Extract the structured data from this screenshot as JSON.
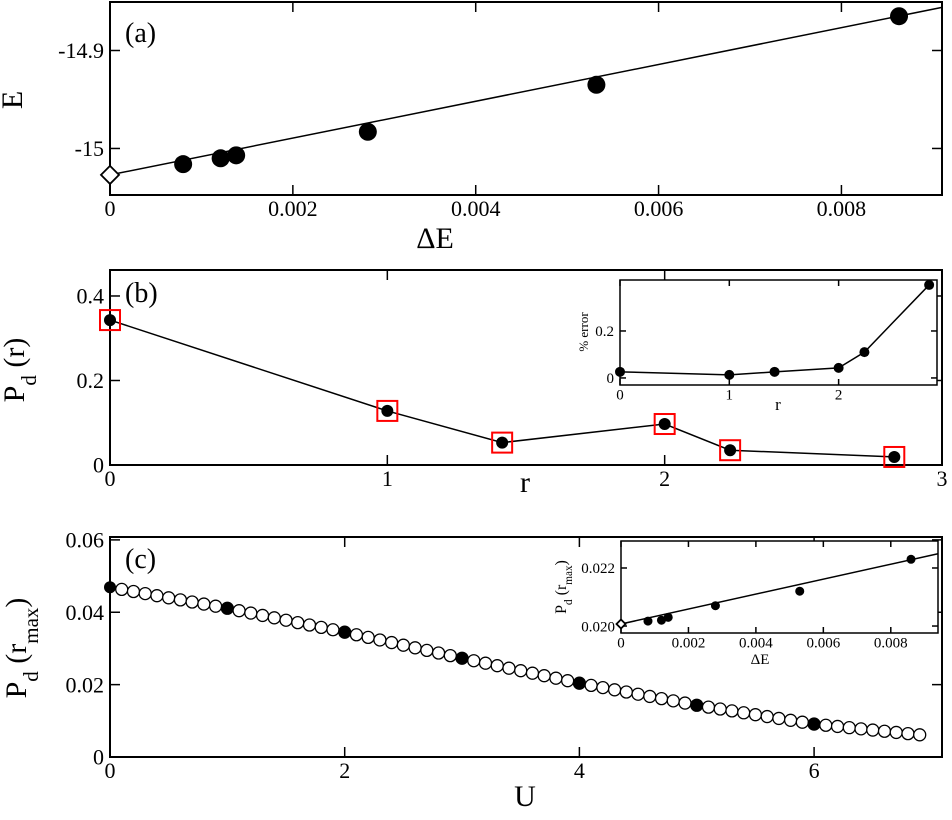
{
  "chart_data": [
    {
      "type": "scatter",
      "panel_label": "(a)",
      "xlabel": "ΔE",
      "ylabel": [
        "E"
      ],
      "xlim": [
        0,
        0.0091
      ],
      "ylim": [
        -15.0475,
        -14.8505
      ],
      "xticks": [
        0,
        0.002,
        0.004,
        0.006,
        0.008
      ],
      "yticks": [
        -15,
        -14.9
      ],
      "series": [
        {
          "x": [
            0,
            0.0091
          ],
          "values": [
            -15.027,
            -14.856
          ],
          "line": true,
          "marker": "none",
          "color": "#000000"
        },
        {
          "x": [
            0
          ],
          "values": [
            -15.027
          ],
          "line": false,
          "marker": "open-diamond",
          "color": "#000000"
        },
        {
          "x": [
            0.0008,
            0.00121,
            0.00138,
            0.00282,
            0.00532,
            0.00863
          ],
          "values": [
            -15.016,
            -15.01,
            -15.007,
            -14.983,
            -14.935,
            -14.865
          ],
          "line": false,
          "marker": "filled-circle",
          "color": "#000000"
        }
      ]
    },
    {
      "type": "line",
      "panel_label": "(b)",
      "xlabel": "r",
      "ylabel": [
        "P",
        "d",
        " (r)"
      ],
      "xlim": [
        0,
        3
      ],
      "ylim": [
        0,
        0.4615
      ],
      "xticks": [
        0,
        1,
        2,
        3
      ],
      "yticks": [
        0,
        0.2,
        0.4
      ],
      "series": [
        {
          "x": [
            0,
            1,
            1.414,
            2,
            2.236,
            2.828
          ],
          "values": [
            0.343,
            0.128,
            0.053,
            0.097,
            0.035,
            0.019
          ],
          "line": true,
          "marker": "filled-circle",
          "color": "#000000",
          "box_color": "#ff0000"
        }
      ]
    },
    {
      "type": "line",
      "xlabel": "r",
      "ylabel": [
        "% error"
      ],
      "xlim": [
        0,
        2.9
      ],
      "ylim": [
        -0.03,
        0.417
      ],
      "xticks": [
        0,
        1,
        2
      ],
      "yticks": [
        0,
        0.2
      ],
      "series": [
        {
          "x": [
            0,
            1,
            1.414,
            2,
            2.236,
            2.828
          ],
          "values": [
            0.026,
            0.013,
            0.026,
            0.043,
            0.11,
            0.396
          ],
          "line": true,
          "marker": "filled-circle",
          "color": "#000000"
        }
      ]
    },
    {
      "type": "scatter",
      "panel_label": "(c)",
      "xlabel": "U",
      "ylabel": [
        "P",
        "d",
        " (r",
        "max",
        ")"
      ],
      "xlim": [
        0,
        7.09
      ],
      "ylim": [
        0,
        0.0608
      ],
      "xticks": [
        0,
        2,
        4,
        6
      ],
      "yticks": [
        0,
        0.02,
        0.04,
        0.06
      ],
      "series": [
        {
          "x": [
            0.1,
            0.2,
            0.3,
            0.4,
            0.5,
            0.6,
            0.7,
            0.8,
            0.9,
            1.0,
            1.1,
            1.2,
            1.3,
            1.4,
            1.5,
            1.6,
            1.7,
            1.8,
            1.9,
            2.0,
            2.1,
            2.2,
            2.3,
            2.4,
            2.5,
            2.6,
            2.7,
            2.8,
            2.9,
            3.0,
            3.1,
            3.2,
            3.3,
            3.4,
            3.5,
            3.6,
            3.7,
            3.8,
            3.9,
            4.0,
            4.1,
            4.2,
            4.3,
            4.4,
            4.5,
            4.6,
            4.7,
            4.8,
            4.9,
            5.0,
            5.1,
            5.2,
            5.3,
            5.4,
            5.5,
            5.6,
            5.7,
            5.8,
            5.9,
            6.0,
            6.1,
            6.2,
            6.3,
            6.4,
            6.5,
            6.6,
            6.7,
            6.8,
            6.9
          ],
          "values": [
            0.04632,
            0.04574,
            0.04516,
            0.04458,
            0.044,
            0.04342,
            0.04284,
            0.04226,
            0.04168,
            0.0411,
            0.04044,
            0.03978,
            0.03912,
            0.03846,
            0.0378,
            0.03714,
            0.03648,
            0.03582,
            0.03516,
            0.0345,
            0.03378,
            0.03306,
            0.03234,
            0.03162,
            0.0309,
            0.03018,
            0.02946,
            0.02874,
            0.02802,
            0.0273,
            0.02661,
            0.02592,
            0.02523,
            0.02454,
            0.02385,
            0.02316,
            0.02247,
            0.02178,
            0.02109,
            0.0204,
            0.01979,
            0.01918,
            0.01857,
            0.01796,
            0.01735,
            0.01674,
            0.01613,
            0.01552,
            0.01491,
            0.0143,
            0.01378,
            0.01326,
            0.01274,
            0.01222,
            0.0117,
            0.01118,
            0.01066,
            0.01014,
            0.00962,
            0.0091,
            0.00877,
            0.00844,
            0.00811,
            0.00778,
            0.00745,
            0.00712,
            0.00679,
            0.00646,
            0.00613
          ],
          "line": false,
          "marker": "open-circle",
          "color": "#000000"
        },
        {
          "x": [
            0,
            1,
            2,
            3,
            4,
            5,
            6
          ],
          "values": [
            0.0469,
            0.0411,
            0.0345,
            0.0273,
            0.0204,
            0.0143,
            0.0091
          ],
          "line": false,
          "marker": "filled-circle",
          "color": "#000000"
        }
      ]
    },
    {
      "type": "scatter",
      "xlabel": "ΔE",
      "ylabel": [
        "P",
        "d",
        " (r",
        "max",
        ")"
      ],
      "xlim": [
        0,
        0.0094
      ],
      "ylim": [
        0.01976,
        0.02293
      ],
      "xticks": [
        0,
        0.002,
        0.004,
        0.006,
        0.008
      ],
      "yticks": [
        {
          "value": 0.02,
          "label": "0.020"
        },
        {
          "value": 0.022,
          "label": "0.022"
        }
      ],
      "series": [
        {
          "x": [
            0,
            0.0094
          ],
          "values": [
            0.02007,
            0.02249
          ],
          "line": true,
          "marker": "none",
          "color": "#000000"
        },
        {
          "x": [
            0
          ],
          "values": [
            0.02007
          ],
          "line": false,
          "marker": "open-diamond",
          "color": "#000000"
        },
        {
          "x": [
            0.0008,
            0.0012,
            0.0014,
            0.0028,
            0.0053,
            0.0086
          ],
          "values": [
            0.02017,
            0.0202,
            0.0203,
            0.0207,
            0.0212,
            0.0223
          ],
          "line": false,
          "marker": "filled-circle",
          "color": "#000000"
        }
      ]
    }
  ]
}
